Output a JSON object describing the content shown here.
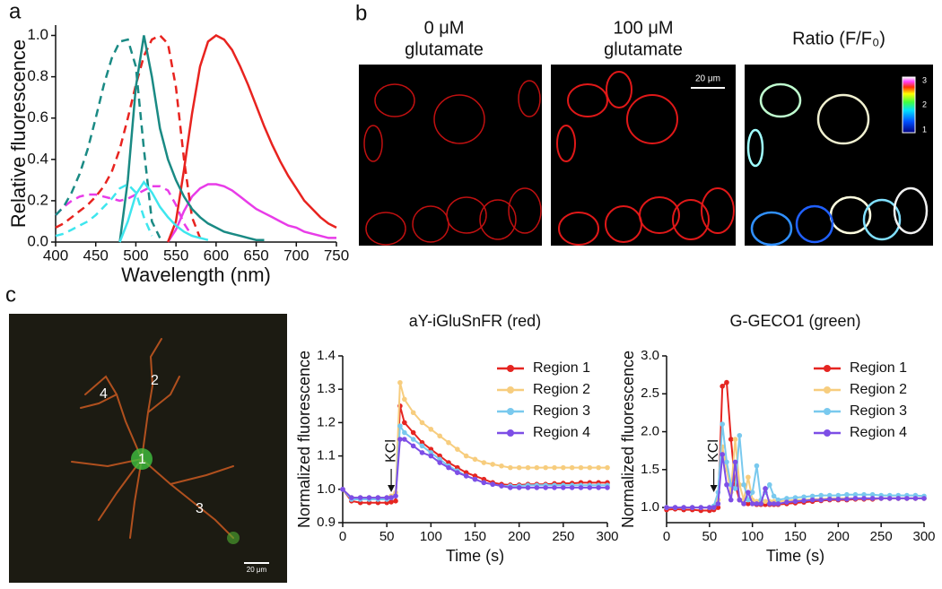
{
  "panel_labels": [
    "a",
    "b",
    "c"
  ],
  "panel_b": {
    "titles": [
      [
        "0 μM",
        "glutamate"
      ],
      [
        "100 μM",
        "glutamate"
      ],
      [
        "Ratio (F/F₀)"
      ]
    ],
    "scale_bar": "20 μm",
    "colorbar_labels": [
      "3",
      "2",
      "1"
    ]
  },
  "panel_c_image": {
    "region_labels": [
      "1",
      "2",
      "3",
      "4"
    ],
    "scale_bar": "20 μm"
  },
  "chart_data": [
    {
      "type": "line",
      "xlabel": "Wavelength (nm)",
      "ylabel": "Relative fluorescence",
      "x": [
        400,
        410,
        420,
        430,
        440,
        450,
        460,
        470,
        480,
        490,
        500,
        510,
        520,
        530,
        540,
        550,
        560,
        570,
        580,
        590,
        600,
        610,
        620,
        630,
        640,
        650,
        660,
        670,
        680,
        690,
        700,
        710,
        720,
        730,
        740,
        750
      ],
      "xlim": [
        400,
        750
      ],
      "ylim": [
        0,
        1.05
      ],
      "xticks": [
        400,
        450,
        500,
        550,
        600,
        650,
        700,
        750
      ],
      "yticks": [
        {
          "value": 0,
          "label": "0.0"
        },
        0.2,
        0.4,
        0.6,
        0.8,
        {
          "value": 1,
          "label": "1.0"
        }
      ],
      "series": [
        {
          "color": "#e83ce8",
          "dash": true,
          "values": [
            0.13,
            0.17,
            0.2,
            0.22,
            0.23,
            0.23,
            0.22,
            0.21,
            0.2,
            0.21,
            0.23,
            0.25,
            0.27,
            0.27,
            0.25,
            0.18,
            0.09,
            0.03,
            null,
            null,
            null,
            null,
            null,
            null,
            null,
            null,
            null,
            null,
            null,
            null,
            null,
            null,
            null,
            null,
            null,
            null
          ]
        },
        {
          "color": "#e83ce8",
          "dash": false,
          "values": [
            null,
            null,
            null,
            null,
            null,
            null,
            null,
            null,
            null,
            null,
            null,
            null,
            null,
            null,
            0.0,
            0.06,
            0.15,
            0.22,
            0.26,
            0.28,
            0.28,
            0.27,
            0.25,
            0.22,
            0.19,
            0.16,
            0.14,
            0.12,
            0.1,
            0.08,
            0.07,
            0.05,
            0.04,
            0.03,
            0.02,
            0.02
          ]
        },
        {
          "color": "#e8231f",
          "dash": true,
          "values": [
            0.07,
            0.09,
            0.12,
            0.15,
            0.18,
            0.22,
            0.27,
            0.34,
            0.45,
            0.6,
            0.76,
            0.9,
            0.98,
            1.0,
            0.96,
            0.75,
            0.4,
            0.12,
            0.02,
            null,
            null,
            null,
            null,
            null,
            null,
            null,
            null,
            null,
            null,
            null,
            null,
            null,
            null,
            null,
            null,
            null
          ]
        },
        {
          "color": "#e8231f",
          "dash": false,
          "values": [
            null,
            null,
            null,
            null,
            null,
            null,
            null,
            null,
            null,
            null,
            null,
            null,
            null,
            null,
            0.0,
            0.1,
            0.35,
            0.62,
            0.85,
            0.97,
            1.0,
            0.98,
            0.93,
            0.85,
            0.76,
            0.66,
            0.56,
            0.47,
            0.39,
            0.32,
            0.26,
            0.2,
            0.16,
            0.12,
            0.09,
            0.07
          ]
        },
        {
          "color": "#1a8a84",
          "dash": true,
          "values": [
            0.13,
            0.17,
            0.24,
            0.33,
            0.45,
            0.6,
            0.76,
            0.89,
            0.97,
            0.98,
            0.85,
            0.45,
            0.1,
            0.02,
            null,
            null,
            null,
            null,
            null,
            null,
            null,
            null,
            null,
            null,
            null,
            null,
            null,
            null,
            null,
            null,
            null,
            null,
            null,
            null,
            null,
            null
          ]
        },
        {
          "color": "#1a8a84",
          "dash": false,
          "values": [
            null,
            null,
            null,
            null,
            null,
            null,
            null,
            null,
            0.0,
            0.3,
            0.75,
            1.0,
            0.8,
            0.55,
            0.4,
            0.3,
            0.22,
            0.16,
            0.12,
            0.09,
            0.07,
            0.05,
            0.04,
            0.03,
            0.02,
            0.01,
            0.01,
            null,
            null,
            null,
            null,
            null,
            null,
            null,
            null,
            null
          ]
        },
        {
          "color": "#3ee6ee",
          "dash": true,
          "values": [
            0.03,
            0.04,
            0.06,
            0.08,
            0.1,
            0.13,
            0.17,
            0.21,
            0.26,
            0.28,
            0.24,
            0.12,
            0.03,
            null,
            null,
            null,
            null,
            null,
            null,
            null,
            null,
            null,
            null,
            null,
            null,
            null,
            null,
            null,
            null,
            null,
            null,
            null,
            null,
            null,
            null,
            null
          ]
        },
        {
          "color": "#3ee6ee",
          "dash": false,
          "values": [
            null,
            null,
            null,
            null,
            null,
            null,
            null,
            null,
            0.0,
            0.1,
            0.23,
            0.29,
            0.24,
            0.17,
            0.12,
            0.08,
            0.05,
            0.03,
            0.02,
            0.01,
            null,
            null,
            null,
            null,
            null,
            null,
            null,
            null,
            null,
            null,
            null,
            null,
            null,
            null,
            null,
            null
          ]
        }
      ]
    },
    {
      "type": "line",
      "title": "aY-iGluSnFR (red)",
      "xlabel": "Time (s)",
      "ylabel": "Normalized fluorescence",
      "legend": "top-right",
      "markers": true,
      "x": [
        0,
        10,
        20,
        30,
        40,
        50,
        55,
        60,
        65,
        70,
        80,
        90,
        100,
        110,
        120,
        130,
        140,
        150,
        160,
        170,
        180,
        190,
        200,
        210,
        220,
        230,
        240,
        250,
        260,
        270,
        280,
        290,
        300
      ],
      "xlim": [
        0,
        300
      ],
      "ylim": [
        0.9,
        1.4
      ],
      "xticks": [
        0,
        50,
        100,
        150,
        200,
        250,
        300
      ],
      "yticks": [
        0.9,
        {
          "value": 1,
          "label": "1.0"
        },
        1.1,
        1.2,
        1.3,
        1.4
      ],
      "annotation": {
        "text": "KCl",
        "x": 55
      },
      "series": [
        {
          "name": "Region 1",
          "color": "#e52521",
          "values": [
            1.0,
            0.965,
            0.96,
            0.96,
            0.96,
            0.96,
            0.962,
            0.965,
            1.25,
            1.2,
            1.17,
            1.14,
            1.12,
            1.1,
            1.08,
            1.065,
            1.05,
            1.04,
            1.03,
            1.02,
            1.015,
            1.013,
            1.013,
            1.015,
            1.015,
            1.015,
            1.017,
            1.018,
            1.018,
            1.02,
            1.02,
            1.02,
            1.02
          ]
        },
        {
          "name": "Region 2",
          "color": "#f7cd7e",
          "values": [
            1.0,
            0.975,
            0.975,
            0.975,
            0.975,
            0.975,
            0.98,
            0.99,
            1.32,
            1.27,
            1.23,
            1.2,
            1.18,
            1.16,
            1.14,
            1.12,
            1.1,
            1.09,
            1.08,
            1.075,
            1.07,
            1.065,
            1.065,
            1.065,
            1.065,
            1.065,
            1.065,
            1.065,
            1.065,
            1.065,
            1.065,
            1.065,
            1.065
          ]
        },
        {
          "name": "Region 3",
          "color": "#79c9ee",
          "values": [
            1.0,
            0.97,
            0.97,
            0.97,
            0.97,
            0.97,
            0.975,
            0.98,
            1.19,
            1.17,
            1.15,
            1.13,
            1.11,
            1.09,
            1.07,
            1.055,
            1.04,
            1.03,
            1.02,
            1.015,
            1.01,
            1.01,
            1.01,
            1.012,
            1.012,
            1.012,
            1.012,
            1.012,
            1.012,
            1.012,
            1.012,
            1.012,
            1.012
          ]
        },
        {
          "name": "Region 4",
          "color": "#7d4ee6",
          "values": [
            1.0,
            0.975,
            0.975,
            0.975,
            0.975,
            0.975,
            0.975,
            0.98,
            1.15,
            1.15,
            1.13,
            1.11,
            1.1,
            1.08,
            1.065,
            1.05,
            1.04,
            1.03,
            1.02,
            1.015,
            1.01,
            1.005,
            1.005,
            1.005,
            1.005,
            1.005,
            1.005,
            1.005,
            1.005,
            1.005,
            1.005,
            1.005,
            1.005
          ]
        }
      ]
    },
    {
      "type": "line",
      "title": "G-GECO1 (green)",
      "xlabel": "Time (s)",
      "ylabel": "Normalized fluorescence",
      "legend": "top-right",
      "markers": true,
      "x": [
        0,
        10,
        20,
        30,
        40,
        50,
        55,
        60,
        65,
        70,
        75,
        80,
        85,
        90,
        95,
        100,
        105,
        110,
        115,
        120,
        125,
        130,
        140,
        150,
        160,
        170,
        180,
        190,
        200,
        210,
        220,
        230,
        240,
        250,
        260,
        270,
        280,
        290,
        300
      ],
      "xlim": [
        0,
        300
      ],
      "ylim": [
        0.8,
        3.0
      ],
      "xticks": [
        0,
        50,
        100,
        150,
        200,
        250,
        300
      ],
      "yticks": [
        {
          "value": 1,
          "label": "1.0"
        },
        1.5,
        {
          "value": 2,
          "label": "2.0"
        },
        2.5,
        {
          "value": 3,
          "label": "3.0"
        }
      ],
      "annotation": {
        "text": "KCl",
        "x": 55
      },
      "series": [
        {
          "name": "Region 1",
          "color": "#e52521",
          "values": [
            0.97,
            0.98,
            0.97,
            0.97,
            0.96,
            0.96,
            0.97,
            1.0,
            2.6,
            2.65,
            1.9,
            1.3,
            1.1,
            1.05,
            1.05,
            1.05,
            1.04,
            1.04,
            1.04,
            1.04,
            1.04,
            1.04,
            1.05,
            1.06,
            1.07,
            1.08,
            1.09,
            1.1,
            1.1,
            1.1,
            1.11,
            1.11,
            1.11,
            1.12,
            1.12,
            1.12,
            1.12,
            1.12,
            1.12
          ]
        },
        {
          "name": "Region 2",
          "color": "#f7cd7e",
          "values": [
            1.0,
            1.0,
            1.0,
            1.0,
            1.0,
            1.0,
            1.0,
            1.1,
            1.8,
            1.5,
            1.2,
            1.9,
            1.3,
            1.1,
            1.4,
            1.1,
            1.08,
            1.08,
            1.08,
            1.08,
            1.08,
            1.08,
            1.09,
            1.1,
            1.1,
            1.11,
            1.11,
            1.12,
            1.12,
            1.12,
            1.12,
            1.12,
            1.12,
            1.12,
            1.12,
            1.12,
            1.12,
            1.12,
            1.12
          ]
        },
        {
          "name": "Region 3",
          "color": "#79c9ee",
          "values": [
            1.0,
            1.0,
            1.0,
            1.0,
            1.0,
            1.0,
            1.02,
            1.2,
            2.1,
            1.6,
            1.3,
            1.25,
            1.95,
            1.3,
            1.1,
            1.2,
            1.55,
            1.1,
            1.2,
            1.3,
            1.15,
            1.1,
            1.12,
            1.13,
            1.14,
            1.15,
            1.16,
            1.16,
            1.16,
            1.17,
            1.17,
            1.17,
            1.17,
            1.16,
            1.16,
            1.16,
            1.16,
            1.16,
            1.15
          ]
        },
        {
          "name": "Region 4",
          "color": "#7d4ee6",
          "values": [
            1.0,
            1.0,
            1.0,
            1.0,
            1.0,
            1.0,
            1.0,
            1.05,
            1.7,
            1.3,
            1.1,
            1.6,
            1.1,
            1.05,
            1.2,
            1.05,
            1.05,
            1.05,
            1.25,
            1.05,
            1.05,
            1.05,
            1.07,
            1.08,
            1.09,
            1.1,
            1.1,
            1.11,
            1.11,
            1.11,
            1.12,
            1.12,
            1.12,
            1.12,
            1.12,
            1.12,
            1.12,
            1.12,
            1.12
          ]
        }
      ]
    }
  ]
}
